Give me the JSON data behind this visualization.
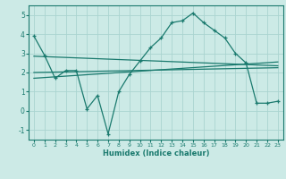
{
  "xlabel": "Humidex (Indice chaleur)",
  "ylabel": "",
  "background_color": "#cceae6",
  "grid_color": "#aad4d0",
  "line_color": "#1a7a6e",
  "xlim": [
    -0.5,
    23.5
  ],
  "ylim": [
    -1.5,
    5.5
  ],
  "yticks": [
    -1,
    0,
    1,
    2,
    3,
    4,
    5
  ],
  "xticks": [
    0,
    1,
    2,
    3,
    4,
    5,
    6,
    7,
    8,
    9,
    10,
    11,
    12,
    13,
    14,
    15,
    16,
    17,
    18,
    19,
    20,
    21,
    22,
    23
  ],
  "line1_x": [
    0,
    1,
    2,
    3,
    4,
    5,
    6,
    7,
    8,
    9,
    10,
    11,
    12,
    13,
    14,
    15,
    16,
    17,
    18,
    19,
    20,
    21,
    22,
    23
  ],
  "line1_y": [
    3.9,
    2.9,
    1.7,
    2.1,
    2.1,
    0.1,
    0.8,
    -1.2,
    1.0,
    1.9,
    2.6,
    3.3,
    3.8,
    4.6,
    4.7,
    5.1,
    4.6,
    4.2,
    3.8,
    3.0,
    2.5,
    0.4,
    0.4,
    0.5
  ],
  "line2_x": [
    0,
    23
  ],
  "line2_y": [
    2.85,
    2.35
  ],
  "line3_x": [
    0,
    23
  ],
  "line3_y": [
    1.7,
    2.55
  ],
  "line4_x": [
    0,
    23
  ],
  "line4_y": [
    2.0,
    2.25
  ]
}
